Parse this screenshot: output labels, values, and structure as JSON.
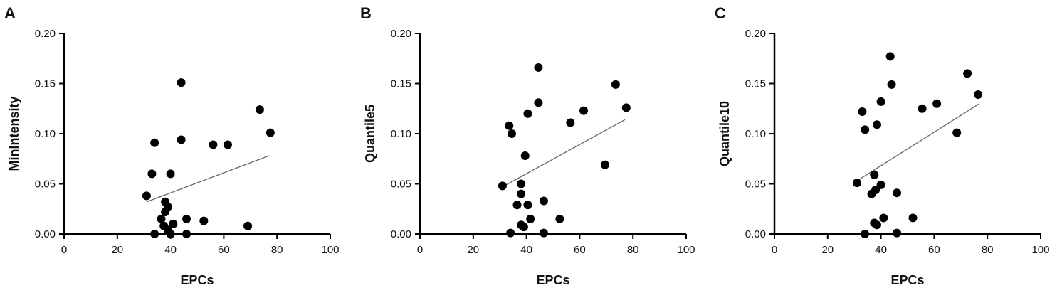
{
  "chart_data": [
    {
      "type": "scatter",
      "panel_label": "A",
      "x_label": "EPCs",
      "y_label": "MinIntensity",
      "xlim": [
        0,
        100
      ],
      "xticks": [
        0,
        20,
        40,
        60,
        80,
        100
      ],
      "ylim": [
        0,
        0.2
      ],
      "yticks": [
        {
          "value": 0,
          "label": "0.00"
        },
        0.05,
        {
          "value": 0.1,
          "label": "0.10"
        },
        0.15,
        {
          "value": 0.2,
          "label": "0.20"
        }
      ],
      "color": "#000000",
      "x": [
        31,
        33,
        34,
        34,
        36.5,
        37.5,
        38,
        38,
        39,
        39,
        40,
        40,
        41,
        44,
        44,
        46,
        46,
        52.5,
        56,
        61.5,
        69,
        73.5,
        77.5
      ],
      "values": [
        0.038,
        0.06,
        0.091,
        0.0,
        0.015,
        0.008,
        0.032,
        0.022,
        0.027,
        0.004,
        0.0,
        0.06,
        0.01,
        0.151,
        0.094,
        0.015,
        0.0,
        0.013,
        0.089,
        0.089,
        0.008,
        0.124,
        0.101
      ],
      "trend": {
        "x": [
          31,
          77
        ],
        "values": [
          0.032,
          0.078
        ]
      }
    },
    {
      "type": "scatter",
      "panel_label": "B",
      "x_label": "EPCs",
      "y_label": "Quantile5",
      "xlim": [
        0,
        100
      ],
      "xticks": [
        0,
        20,
        40,
        60,
        80,
        100
      ],
      "ylim": [
        0,
        0.2
      ],
      "yticks": [
        {
          "value": 0,
          "label": "0.00"
        },
        0.05,
        {
          "value": 0.1,
          "label": "0.10"
        },
        0.15,
        {
          "value": 0.2,
          "label": "0.20"
        }
      ],
      "color": "#000000",
      "x": [
        31,
        33.5,
        34.5,
        34,
        36.5,
        38,
        38,
        38,
        39,
        39.5,
        40.5,
        40.5,
        41.5,
        44.5,
        44.5,
        46.5,
        46.5,
        52.5,
        56.5,
        61.5,
        69.5,
        73.5,
        77.5
      ],
      "values": [
        0.048,
        0.108,
        0.1,
        0.001,
        0.029,
        0.05,
        0.04,
        0.009,
        0.007,
        0.078,
        0.029,
        0.12,
        0.015,
        0.131,
        0.166,
        0.033,
        0.001,
        0.015,
        0.111,
        0.123,
        0.069,
        0.149,
        0.126
      ],
      "trend": {
        "x": [
          31,
          77
        ],
        "values": [
          0.047,
          0.114
        ]
      }
    },
    {
      "type": "scatter",
      "panel_label": "C",
      "x_label": "EPCs",
      "y_label": "Quantile10",
      "xlim": [
        0,
        100
      ],
      "xticks": [
        0,
        20,
        40,
        60,
        80,
        100
      ],
      "ylim": [
        0,
        0.2
      ],
      "yticks": [
        {
          "value": 0,
          "label": "0.00"
        },
        0.05,
        {
          "value": 0.1,
          "label": "0.10"
        },
        0.15,
        {
          "value": 0.2,
          "label": "0.20"
        }
      ],
      "color": "#000000",
      "x": [
        31,
        33,
        34,
        34,
        36.5,
        38,
        37.5,
        37.5,
        38.5,
        38.5,
        40,
        40,
        41,
        43.5,
        44,
        46,
        46,
        52,
        55.5,
        61,
        68.5,
        72.5,
        76.5
      ],
      "values": [
        0.051,
        0.122,
        0.104,
        0.0,
        0.04,
        0.044,
        0.059,
        0.011,
        0.009,
        0.109,
        0.049,
        0.132,
        0.016,
        0.177,
        0.149,
        0.041,
        0.001,
        0.016,
        0.125,
        0.13,
        0.101,
        0.16,
        0.139
      ],
      "trend": {
        "x": [
          31,
          77
        ],
        "values": [
          0.053,
          0.13
        ]
      }
    }
  ]
}
